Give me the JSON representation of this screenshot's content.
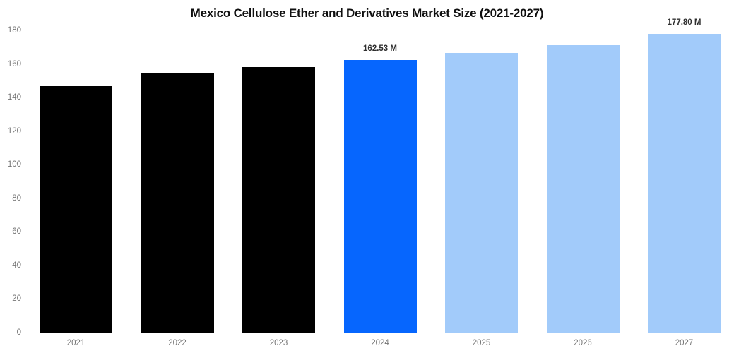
{
  "title": "Mexico Cellulose Ether and Derivatives Market Size (2021-2027)",
  "chart_data": {
    "type": "bar",
    "title": "Mexico Cellulose Ether and Derivatives Market Size (2021-2027)",
    "categories": [
      "2021",
      "2022",
      "2023",
      "2024",
      "2025",
      "2026",
      "2027"
    ],
    "values": [
      146.9,
      154.2,
      158.0,
      162.53,
      166.6,
      171.3,
      177.8
    ],
    "bar_labels": [
      "",
      "",
      "",
      "162.53 M",
      "",
      "",
      "177.80 M"
    ],
    "bar_colors": [
      "#000000",
      "#000000",
      "#000000",
      "#0666fe",
      "#a2cbfa",
      "#a2cbfa",
      "#a2cbfa"
    ],
    "xlabel": "",
    "ylabel": "",
    "ylim": [
      0,
      180
    ],
    "ytick_step": 20,
    "ytick_labels": [
      "0",
      "20",
      "40",
      "60",
      "80",
      "100",
      "120",
      "140",
      "160",
      "180"
    ],
    "grid": false,
    "legend": false,
    "background_color": "#ffffff",
    "axis_color": "#d9d9d9",
    "tick_label_color": "#757575",
    "value_label_color": "#2e2e2e",
    "title_color": "#0f0f0f"
  }
}
